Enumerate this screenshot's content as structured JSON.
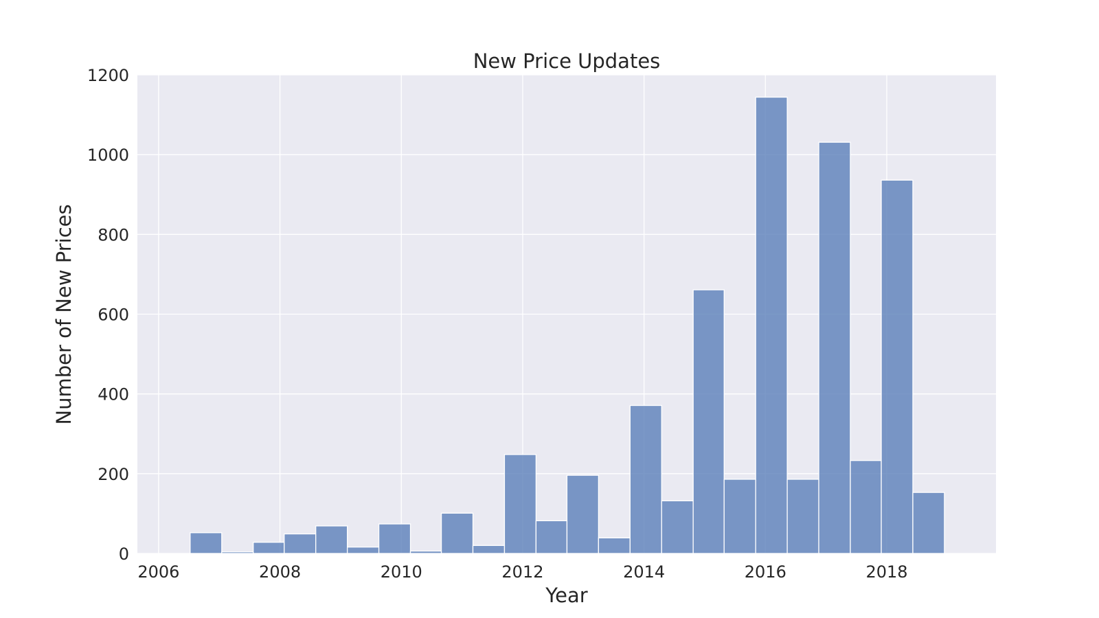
{
  "chart_data": {
    "type": "bar",
    "title": "New Price Updates",
    "xlabel": "Year",
    "ylabel": "Number of New Prices",
    "xlim": [
      2005.65,
      2019.8
    ],
    "ylim": [
      0,
      1200
    ],
    "xticks": [
      2006,
      2008,
      2010,
      2012,
      2014,
      2016,
      2018
    ],
    "xtick_labels": [
      "2006",
      "2008",
      "2010",
      "2012",
      "2014",
      "2016",
      "2018"
    ],
    "yticks": [
      0,
      200,
      400,
      600,
      800,
      1000,
      1200
    ],
    "ytick_labels": [
      "0",
      "200",
      "400",
      "600",
      "800",
      "1000",
      "1200"
    ],
    "grid": true,
    "bar_color": "#5b7fb9",
    "bar_opacity": 0.8,
    "background_color": "#eaeaf2",
    "bins": [
      {
        "x0": 2006.52,
        "x1": 2007.04,
        "value": 52
      },
      {
        "x0": 2007.04,
        "x1": 2007.56,
        "value": 4
      },
      {
        "x0": 2007.56,
        "x1": 2008.07,
        "value": 28
      },
      {
        "x0": 2008.07,
        "x1": 2008.59,
        "value": 49
      },
      {
        "x0": 2008.59,
        "x1": 2009.11,
        "value": 69
      },
      {
        "x0": 2009.11,
        "x1": 2009.63,
        "value": 16
      },
      {
        "x0": 2009.63,
        "x1": 2010.15,
        "value": 74
      },
      {
        "x0": 2010.15,
        "x1": 2010.66,
        "value": 6
      },
      {
        "x0": 2010.66,
        "x1": 2011.18,
        "value": 101
      },
      {
        "x0": 2011.18,
        "x1": 2011.7,
        "value": 20
      },
      {
        "x0": 2011.7,
        "x1": 2012.22,
        "value": 248
      },
      {
        "x0": 2012.22,
        "x1": 2012.73,
        "value": 82
      },
      {
        "x0": 2012.73,
        "x1": 2013.25,
        "value": 196
      },
      {
        "x0": 2013.25,
        "x1": 2013.77,
        "value": 39
      },
      {
        "x0": 2013.77,
        "x1": 2014.29,
        "value": 371
      },
      {
        "x0": 2014.29,
        "x1": 2014.81,
        "value": 132
      },
      {
        "x0": 2014.81,
        "x1": 2015.32,
        "value": 661
      },
      {
        "x0": 2015.32,
        "x1": 2015.84,
        "value": 186
      },
      {
        "x0": 2015.84,
        "x1": 2016.36,
        "value": 1144
      },
      {
        "x0": 2016.36,
        "x1": 2016.88,
        "value": 186
      },
      {
        "x0": 2016.88,
        "x1": 2017.4,
        "value": 1031
      },
      {
        "x0": 2017.4,
        "x1": 2017.91,
        "value": 233
      },
      {
        "x0": 2017.91,
        "x1": 2018.43,
        "value": 936
      },
      {
        "x0": 2018.43,
        "x1": 2018.95,
        "value": 153
      }
    ]
  }
}
